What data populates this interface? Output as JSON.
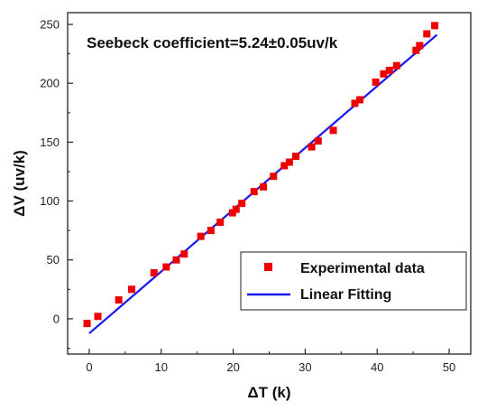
{
  "chart_data": {
    "type": "scatter",
    "annotation": "Seebeck coefficient=5.24±0.05uv/k",
    "xlabel": "ΔT (k)",
    "ylabel": "ΔV (uv/k)",
    "xlim": [
      -3,
      53
    ],
    "ylim": [
      -30,
      260
    ],
    "xticks": [
      0,
      10,
      20,
      30,
      40,
      50
    ],
    "yticks": [
      0,
      50,
      100,
      150,
      200,
      250
    ],
    "grid": false,
    "legend_position": "bottom-right",
    "colors": {
      "marker": "#ee0000",
      "line": "#1a1aee"
    },
    "series": [
      {
        "name": "Experimental data",
        "kind": "scatter",
        "x": [
          -0.3,
          1.2,
          4.1,
          5.9,
          9.0,
          10.7,
          12.1,
          13.2,
          15.5,
          16.9,
          18.2,
          19.9,
          20.4,
          21.2,
          22.9,
          24.2,
          25.6,
          27.1,
          27.8,
          28.7,
          30.9,
          31.8,
          33.9,
          36.9,
          37.6,
          39.8,
          40.9,
          41.7,
          42.7,
          45.4,
          45.9,
          46.9,
          48.0
        ],
        "y": [
          -4,
          2,
          16,
          25,
          39,
          44,
          50,
          55,
          70,
          75,
          82,
          90,
          93,
          98,
          108,
          112,
          121,
          130,
          133,
          138,
          146,
          151,
          160,
          183,
          186,
          201,
          208,
          211,
          215,
          228,
          232,
          242,
          249
        ]
      },
      {
        "name": "Linear Fitting",
        "kind": "line",
        "x": [
          0,
          48.3
        ],
        "y": [
          -12.4,
          241.2
        ]
      }
    ]
  }
}
